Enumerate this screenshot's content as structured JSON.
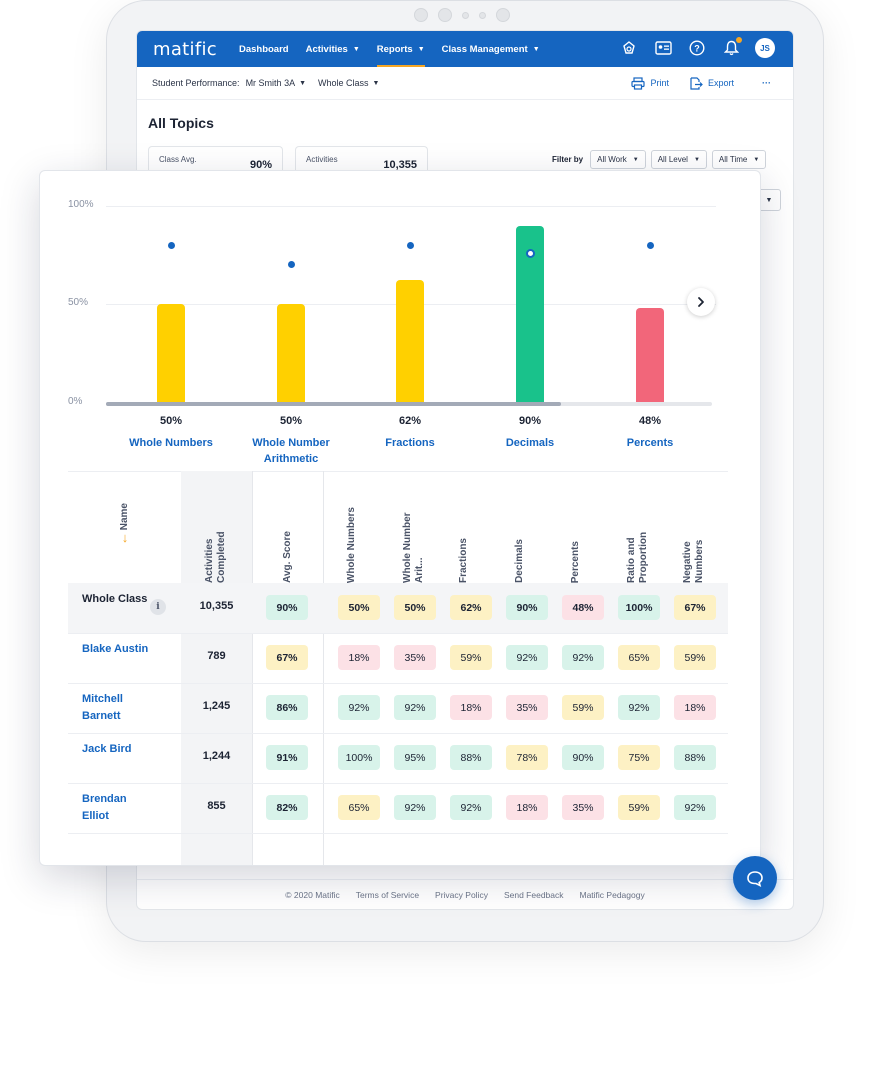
{
  "app": {
    "logo": "matific",
    "nav": [
      {
        "label": "Dashboard",
        "caret": false,
        "active": false
      },
      {
        "label": "Activities",
        "caret": true,
        "active": false
      },
      {
        "label": "Reports",
        "caret": true,
        "active": true
      },
      {
        "label": "Class Management",
        "caret": true,
        "active": false
      }
    ],
    "avatar_initials": "JS"
  },
  "subbar": {
    "label": "Student Performance:",
    "teacher_select": "Mr Smith 3A",
    "class_select": "Whole Class",
    "print": "Print",
    "export": "Export",
    "more": "···"
  },
  "page_title": "All Topics",
  "stats": [
    {
      "label": "Class Avg.",
      "value": "90%"
    },
    {
      "label": "Activities",
      "value": "10,355"
    }
  ],
  "filters": {
    "label": "Filter by",
    "work": "All Work",
    "level": "All Level",
    "time": "All Time"
  },
  "footer": [
    "© 2020 Matific",
    "Terms of Service",
    "Privacy Policy",
    "Send Feedback",
    "Matific Pedagogy"
  ],
  "chart_data": {
    "type": "bar",
    "categories": [
      "Whole Numbers",
      "Whole Number Arithmetic",
      "Fractions",
      "Decimals",
      "Percents"
    ],
    "values": [
      50,
      50,
      62,
      90,
      48
    ],
    "value_labels": [
      "50%",
      "50%",
      "62%",
      "90%",
      "48%"
    ],
    "marker_values": [
      80,
      70,
      80,
      76,
      80
    ],
    "bar_colors": [
      "#ffd000",
      "#ffd000",
      "#ffd000",
      "#19c28b",
      "#f2667a"
    ],
    "ylim": [
      0,
      100
    ],
    "yticks": [
      "100%",
      "50%",
      "0%"
    ],
    "grid": true
  },
  "table": {
    "headers": {
      "name": "Name",
      "activities": "Activities Completed",
      "avg": "Avg. Score",
      "topics": [
        "Whole Numbers",
        "Whole Number Arit...",
        "Fractions",
        "Decimals",
        "Percents",
        "Ratio and Proportion",
        "Negative Numbers"
      ]
    },
    "rows": [
      {
        "name": "Whole Class",
        "activities": "10,355",
        "avg": "90%",
        "avg_color": "g",
        "scores": [
          "50%",
          "50%",
          "62%",
          "90%",
          "48%",
          "100%",
          "67%"
        ],
        "colors": [
          "y",
          "y",
          "y",
          "g",
          "r",
          "g",
          "y"
        ]
      },
      {
        "name": "Blake Austin",
        "activities": "789",
        "avg": "67%",
        "avg_color": "y",
        "scores": [
          "18%",
          "35%",
          "59%",
          "92%",
          "92%",
          "65%",
          "59%"
        ],
        "colors": [
          "r",
          "r",
          "y",
          "g",
          "g",
          "y",
          "y"
        ]
      },
      {
        "name": "Mitchell Barnett",
        "activities": "1,245",
        "avg": "86%",
        "avg_color": "g",
        "scores": [
          "92%",
          "92%",
          "18%",
          "35%",
          "59%",
          "92%",
          "18%"
        ],
        "colors": [
          "g",
          "g",
          "r",
          "r",
          "y",
          "g",
          "r"
        ]
      },
      {
        "name": "Jack Bird",
        "activities": "1,244",
        "avg": "91%",
        "avg_color": "g",
        "scores": [
          "100%",
          "95%",
          "88%",
          "78%",
          "90%",
          "75%",
          "88%"
        ],
        "colors": [
          "g",
          "g",
          "g",
          "y",
          "g",
          "y",
          "g"
        ]
      },
      {
        "name": "Brendan Elliot",
        "activities": "855",
        "avg": "82%",
        "avg_color": "g",
        "scores": [
          "65%",
          "92%",
          "92%",
          "18%",
          "35%",
          "59%",
          "92%"
        ],
        "colors": [
          "y",
          "g",
          "g",
          "r",
          "r",
          "y",
          "g"
        ]
      }
    ]
  }
}
